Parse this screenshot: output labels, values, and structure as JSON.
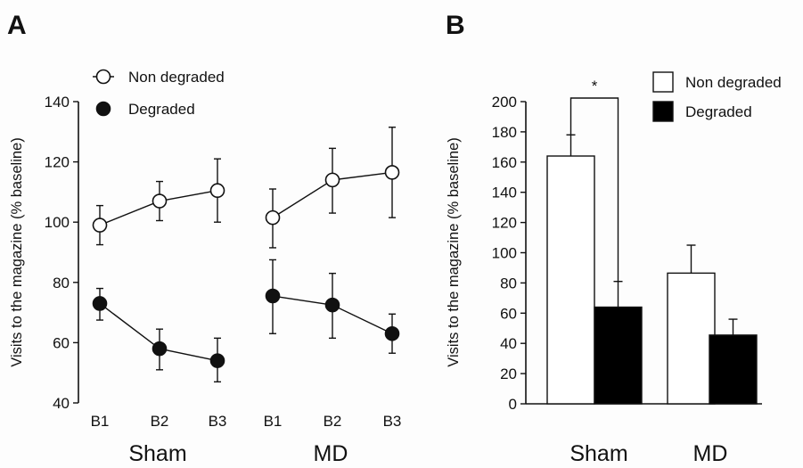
{
  "panels": {
    "a_letter": "A",
    "b_letter": "B",
    "ylabel": "Visits to the magazine (% baseline)"
  },
  "chart_data": [
    {
      "panel": "A",
      "type": "line",
      "ylim": [
        40,
        140
      ],
      "yticks": [
        40,
        60,
        80,
        100,
        120,
        140
      ],
      "groups": [
        {
          "name": "Sham",
          "categories": [
            "B1",
            "B2",
            "B3"
          ]
        },
        {
          "name": "MD",
          "categories": [
            "B1",
            "B2",
            "B3"
          ]
        }
      ],
      "legend": {
        "placement": "top-left"
      },
      "series": [
        {
          "name": "Non degraded",
          "marker": "open-circle",
          "groups": [
            {
              "values": [
                99,
                107,
                110.5
              ],
              "err_hi": [
                105.5,
                113.5,
                121
              ],
              "err_lo": [
                92.5,
                100.5,
                100
              ]
            },
            {
              "values": [
                101.5,
                114,
                116.5
              ],
              "err_hi": [
                111,
                124.5,
                131.5
              ],
              "err_lo": [
                91.5,
                103,
                101.5
              ]
            }
          ]
        },
        {
          "name": "Degraded",
          "marker": "filled-circle",
          "groups": [
            {
              "values": [
                73,
                58,
                54
              ],
              "err_hi": [
                78,
                64.5,
                61.5
              ],
              "err_lo": [
                67.5,
                51,
                47
              ]
            },
            {
              "values": [
                75.5,
                72.5,
                63
              ],
              "err_hi": [
                87.5,
                83,
                69.5
              ],
              "err_lo": [
                63,
                61.5,
                56.5
              ]
            }
          ]
        }
      ]
    },
    {
      "panel": "B",
      "type": "bar",
      "ylim": [
        0,
        200
      ],
      "yticks": [
        0,
        20,
        40,
        60,
        80,
        100,
        120,
        140,
        160,
        180,
        200
      ],
      "categories": [
        "Sham",
        "MD"
      ],
      "legend": {
        "placement": "top-right"
      },
      "series": [
        {
          "name": "Non degraded",
          "color": "#ffffff",
          "values": [
            164,
            86.5
          ],
          "err_hi": [
            178,
            105
          ]
        },
        {
          "name": "Degraded",
          "color": "#000000",
          "values": [
            64,
            45.5
          ],
          "err_hi": [
            81,
            56
          ]
        }
      ],
      "annotation": "*"
    }
  ]
}
